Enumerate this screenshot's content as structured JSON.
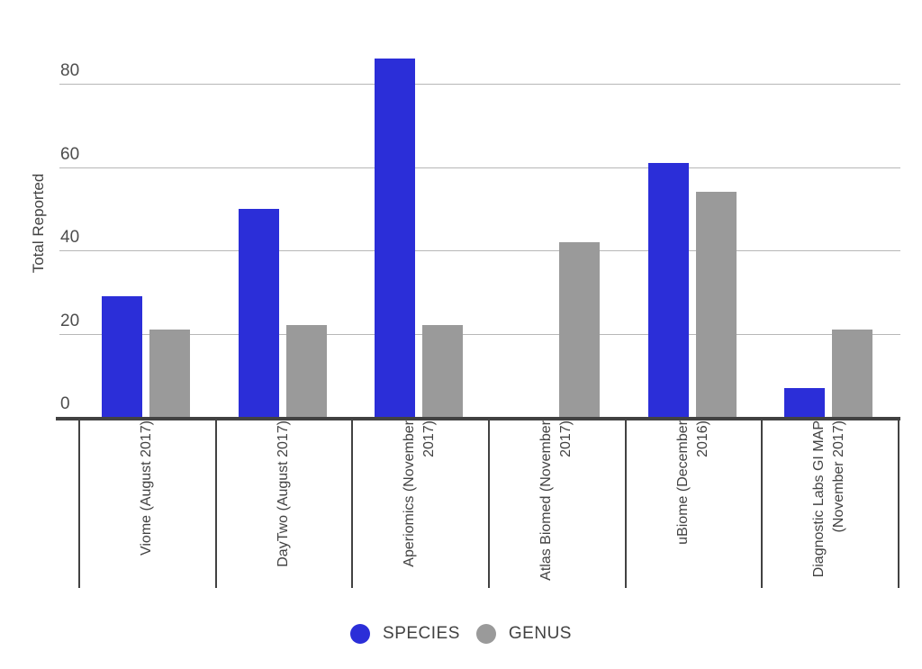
{
  "chart_data": {
    "type": "bar",
    "title": "",
    "xlabel": "",
    "ylabel": "Total Reported",
    "ylim": [
      0,
      90
    ],
    "yticks": [
      0,
      20,
      40,
      60,
      80
    ],
    "grid": true,
    "legend_position": "bottom",
    "categories": [
      "Viome (August 2017)",
      "DayTwo (August 2017)",
      "Aperiomics (November 2017)",
      "Atlas Biomed (November 2017)",
      "uBiome (December 2016)",
      "Diagnostic Labs GI MAP (November 2017)"
    ],
    "category_label_lines": [
      [
        "Viome (August 2017)"
      ],
      [
        "DayTwo (August 2017)"
      ],
      [
        "Aperiomics (November",
        "2017)"
      ],
      [
        "Atlas Biomed (November",
        "2017)"
      ],
      [
        "uBiome (December 2016)"
      ],
      [
        "Diagnostic Labs GI MAP",
        "(November 2017)"
      ]
    ],
    "series": [
      {
        "name": "SPECIES",
        "color": "#2b2ed8",
        "values": [
          29,
          50,
          86,
          0,
          61,
          7
        ]
      },
      {
        "name": "GENUS",
        "color": "#9a9a9a",
        "values": [
          21,
          22,
          22,
          42,
          54,
          21
        ]
      }
    ]
  },
  "colors": {
    "axis": "#424242",
    "gridline": "#b7b7b7",
    "tick_text": "#4d4d4d",
    "label_text": "#424242",
    "background": "#ffffff"
  },
  "legend": {
    "species_label": "SPECIES",
    "genus_label": "GENUS"
  }
}
